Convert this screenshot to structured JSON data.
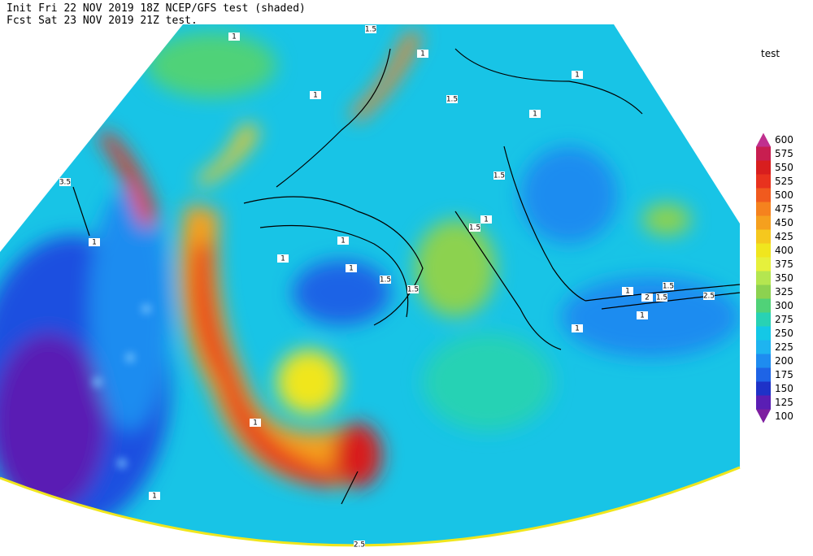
{
  "header": {
    "line1": "Init  Fri 22 NOV 2019 18Z   NCEP/GFS test (shaded)",
    "line2": "Fcst Sat 23 NOV 2019 21Z  test."
  },
  "colorbar": {
    "title": "test",
    "levels": [
      600,
      575,
      550,
      525,
      500,
      475,
      450,
      425,
      400,
      375,
      350,
      325,
      300,
      275,
      250,
      225,
      200,
      175,
      150,
      125,
      100
    ],
    "colors": [
      "#c0308f",
      "#c81e50",
      "#d81e1e",
      "#e8321e",
      "#f05a1e",
      "#f5821e",
      "#f5a01e",
      "#f5c81e",
      "#f0e61e",
      "#e6f03c",
      "#b4e650",
      "#8cd250",
      "#50d278",
      "#28d2b4",
      "#14c8e6",
      "#1eb4f0",
      "#1e8cf0",
      "#1e64e6",
      "#1e32c8",
      "#5a1eb4",
      "#7d1ea0"
    ]
  },
  "contour_labels": [
    "1",
    "1.5",
    "1",
    "1",
    "1.5",
    "1",
    "1",
    "3.5",
    "1",
    "1.5",
    "1.5",
    "1",
    "1",
    "1.5",
    "1.5",
    "1",
    "1.5",
    "2",
    "1.5",
    "2.5",
    "1",
    "1",
    "1",
    "1",
    "1",
    "1",
    "2.5"
  ]
}
